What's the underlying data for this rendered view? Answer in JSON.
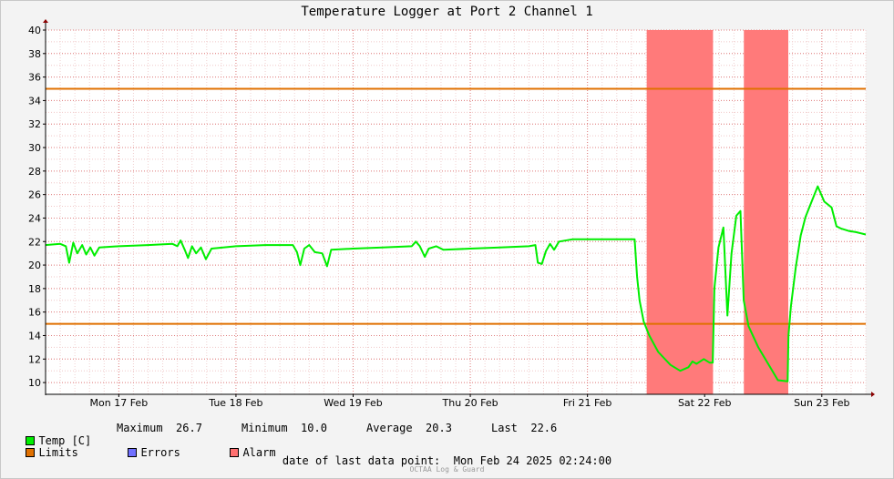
{
  "chart_data": {
    "type": "line",
    "title": "Temperature Logger at Port 2 Channel 1",
    "xlabel": "",
    "ylabel": "",
    "ylim": [
      9,
      40
    ],
    "yticks": [
      10,
      12,
      14,
      16,
      18,
      20,
      22,
      24,
      26,
      28,
      30,
      32,
      34,
      36,
      38,
      40
    ],
    "xlim": [
      "2025-02-16T21:00",
      "2025-02-23T21:00"
    ],
    "xticks": [
      {
        "label": "Mon 17 Feb",
        "at": "2025-02-17T12:00"
      },
      {
        "label": "Tue 18 Feb",
        "at": "2025-02-18T12:00"
      },
      {
        "label": "Wed 19 Feb",
        "at": "2025-02-19T12:00"
      },
      {
        "label": "Thu 20 Feb",
        "at": "2025-02-20T12:00"
      },
      {
        "label": "Fri 21 Feb",
        "at": "2025-02-21T12:00"
      },
      {
        "label": "Sat 22 Feb",
        "at": "2025-02-22T12:00"
      },
      {
        "label": "Sun 23 Feb",
        "at": "2025-02-23T12:00"
      }
    ],
    "grid": true,
    "limits": [
      {
        "name": "Limits",
        "values": [
          35,
          15
        ],
        "color": "#e07000"
      }
    ],
    "alarm_periods": [
      {
        "start": "2025-02-22T00:08",
        "end": "2025-02-22T13:43"
      },
      {
        "start": "2025-02-22T20:02",
        "end": "2025-02-23T05:08"
      }
    ],
    "series": [
      {
        "name": "Temp [C]",
        "color": "#00ee00",
        "points": [
          [
            "2025-02-16T21:00",
            21.7
          ],
          [
            "2025-02-17T00:00",
            21.8
          ],
          [
            "2025-02-17T01:10",
            21.6
          ],
          [
            "2025-02-17T01:50",
            20.2
          ],
          [
            "2025-02-17T02:40",
            21.9
          ],
          [
            "2025-02-17T03:30",
            21.0
          ],
          [
            "2025-02-17T04:30",
            21.7
          ],
          [
            "2025-02-17T05:20",
            20.9
          ],
          [
            "2025-02-17T06:10",
            21.5
          ],
          [
            "2025-02-17T07:00",
            20.8
          ],
          [
            "2025-02-17T08:00",
            21.5
          ],
          [
            "2025-02-17T12:00",
            21.6
          ],
          [
            "2025-02-17T18:00",
            21.7
          ],
          [
            "2025-02-17T23:00",
            21.8
          ],
          [
            "2025-02-18T00:00",
            21.6
          ],
          [
            "2025-02-18T00:40",
            22.1
          ],
          [
            "2025-02-18T01:30",
            21.3
          ],
          [
            "2025-02-18T02:10",
            20.6
          ],
          [
            "2025-02-18T03:00",
            21.6
          ],
          [
            "2025-02-18T03:50",
            21.0
          ],
          [
            "2025-02-18T04:50",
            21.5
          ],
          [
            "2025-02-18T05:50",
            20.5
          ],
          [
            "2025-02-18T07:00",
            21.4
          ],
          [
            "2025-02-18T12:00",
            21.6
          ],
          [
            "2025-02-18T18:00",
            21.7
          ],
          [
            "2025-02-18T23:40",
            21.7
          ],
          [
            "2025-02-19T00:30",
            21.1
          ],
          [
            "2025-02-19T01:10",
            20.0
          ],
          [
            "2025-02-19T02:00",
            21.4
          ],
          [
            "2025-02-19T03:00",
            21.7
          ],
          [
            "2025-02-19T04:10",
            21.1
          ],
          [
            "2025-02-19T05:40",
            21.0
          ],
          [
            "2025-02-19T06:40",
            19.9
          ],
          [
            "2025-02-19T07:30",
            21.3
          ],
          [
            "2025-02-19T12:00",
            21.4
          ],
          [
            "2025-02-19T18:00",
            21.5
          ],
          [
            "2025-02-20T00:00",
            21.6
          ],
          [
            "2025-02-20T00:50",
            22.0
          ],
          [
            "2025-02-20T01:40",
            21.6
          ],
          [
            "2025-02-20T02:40",
            20.7
          ],
          [
            "2025-02-20T03:30",
            21.4
          ],
          [
            "2025-02-20T05:00",
            21.6
          ],
          [
            "2025-02-20T06:30",
            21.3
          ],
          [
            "2025-02-20T12:00",
            21.4
          ],
          [
            "2025-02-20T18:00",
            21.5
          ],
          [
            "2025-02-21T00:00",
            21.6
          ],
          [
            "2025-02-21T01:20",
            21.7
          ],
          [
            "2025-02-21T01:50",
            20.2
          ],
          [
            "2025-02-21T02:40",
            20.1
          ],
          [
            "2025-02-21T03:30",
            21.2
          ],
          [
            "2025-02-21T04:20",
            21.8
          ],
          [
            "2025-02-21T05:10",
            21.3
          ],
          [
            "2025-02-21T06:10",
            22.0
          ],
          [
            "2025-02-21T09:00",
            22.2
          ],
          [
            "2025-02-21T15:00",
            22.2
          ],
          [
            "2025-02-21T21:40",
            22.2
          ],
          [
            "2025-02-21T22:10",
            19.0
          ],
          [
            "2025-02-21T22:40",
            17.0
          ],
          [
            "2025-02-21T23:30",
            15.2
          ],
          [
            "2025-02-22T00:40",
            14.0
          ],
          [
            "2025-02-22T02:30",
            12.6
          ],
          [
            "2025-02-22T05:00",
            11.5
          ],
          [
            "2025-02-22T07:00",
            11.0
          ],
          [
            "2025-02-22T08:40",
            11.3
          ],
          [
            "2025-02-22T09:30",
            11.8
          ],
          [
            "2025-02-22T10:20",
            11.6
          ],
          [
            "2025-02-22T11:50",
            12.0
          ],
          [
            "2025-02-22T13:00",
            11.7
          ],
          [
            "2025-02-22T13:40",
            11.7
          ],
          [
            "2025-02-22T14:00",
            18.0
          ],
          [
            "2025-02-22T14:50",
            21.5
          ],
          [
            "2025-02-22T15:50",
            23.2
          ],
          [
            "2025-02-22T16:40",
            15.7
          ],
          [
            "2025-02-22T17:30",
            21.0
          ],
          [
            "2025-02-22T18:30",
            24.2
          ],
          [
            "2025-02-22T19:20",
            24.6
          ],
          [
            "2025-02-22T20:00",
            17.0
          ],
          [
            "2025-02-22T21:00",
            14.8
          ],
          [
            "2025-02-22T23:00",
            13.0
          ],
          [
            "2025-02-23T01:00",
            11.6
          ],
          [
            "2025-02-23T03:00",
            10.2
          ],
          [
            "2025-02-23T05:00",
            10.1
          ],
          [
            "2025-02-23T05:10",
            14.0
          ],
          [
            "2025-02-23T05:40",
            16.5
          ],
          [
            "2025-02-23T06:40",
            19.8
          ],
          [
            "2025-02-23T07:40",
            22.5
          ],
          [
            "2025-02-23T08:40",
            24.1
          ],
          [
            "2025-02-23T10:00",
            25.5
          ],
          [
            "2025-02-23T11:10",
            26.7
          ],
          [
            "2025-02-23T12:30",
            25.4
          ],
          [
            "2025-02-23T14:00",
            24.9
          ],
          [
            "2025-02-23T15:00",
            23.3
          ],
          [
            "2025-02-23T16:00",
            23.1
          ],
          [
            "2025-02-23T17:30",
            22.9
          ],
          [
            "2025-02-23T19:00",
            22.8
          ],
          [
            "2025-02-23T21:00",
            22.6
          ]
        ]
      }
    ]
  },
  "legend": {
    "temp_label": "Temp [C]",
    "maximum_label": "Maximum",
    "maximum_value": "26.7",
    "minimum_label": "Minimum",
    "minimum_value": "10.0",
    "average_label": "Average",
    "average_value": "20.3",
    "last_label": "Last",
    "last_value": "22.6",
    "limits_label": "Limits",
    "errors_label": "Errors",
    "alarm_label": "Alarm"
  },
  "colors": {
    "temp": "#00ee00",
    "limits": "#e07000",
    "errors": "#7070ff",
    "alarm": "#ff7070",
    "alarm_fill": "#ff7a7a"
  },
  "footer": {
    "label": "date of last data point:",
    "value": "Mon Feb 24 2025 02:24:00"
  },
  "credit": "OCTAA Log & Guard"
}
